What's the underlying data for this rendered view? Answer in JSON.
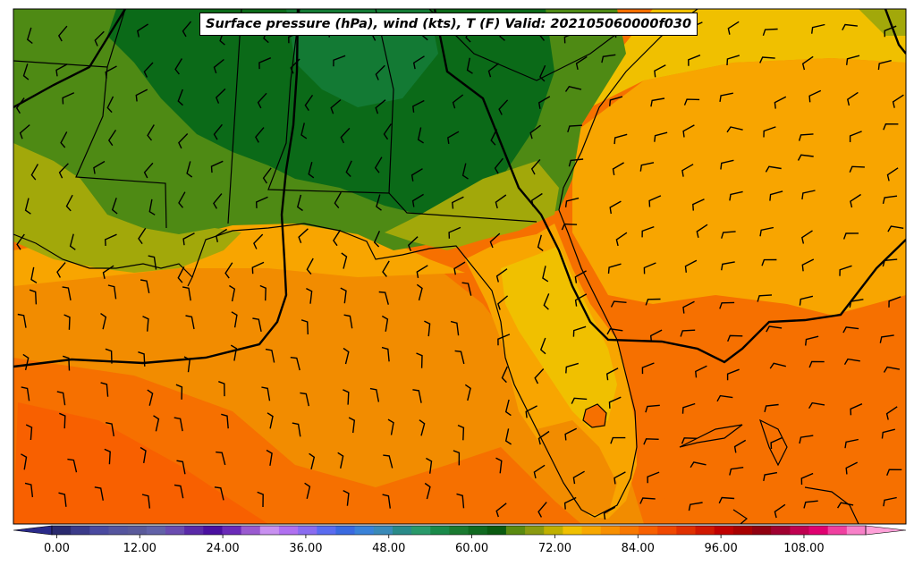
{
  "title": "Surface pressure (hPa), wind (kts), T (F) Valid: 202105060000f030",
  "colorbar": {
    "tick_labels": [
      "0.00",
      "12.00",
      "24.00",
      "36.00",
      "48.00",
      "60.00",
      "72.00",
      "84.00",
      "96.00",
      "108.00"
    ],
    "min": -6,
    "max": 123,
    "step": 3,
    "colors": [
      "#2a2a6e",
      "#3b3b8a",
      "#4a4aa0",
      "#55559e",
      "#5a5a9a",
      "#6262a8",
      "#6a4cb0",
      "#5a2aa8",
      "#4a10a0",
      "#6a2ab8",
      "#9a5ad0",
      "#c890f0",
      "#b070f0",
      "#8a6cf0",
      "#5a6cf0",
      "#3a6ae0",
      "#3a82d8",
      "#3a8ab8",
      "#2a8a88",
      "#2a9a6a",
      "#1a8a4a",
      "#1a7a30",
      "#106a20",
      "#0a5a10",
      "#5a8a10",
      "#8a9a10",
      "#c0b000",
      "#f0c000",
      "#f8a800",
      "#f89000",
      "#f87800",
      "#f86000",
      "#f04800",
      "#e03000",
      "#d01800",
      "#c00000",
      "#a80000",
      "#900010",
      "#a00030",
      "#c00050",
      "#e00070",
      "#f040a0",
      "#f880c8"
    ]
  },
  "colors": {
    "gulf_warm": "#f28c00",
    "gulf_hot": "#f67000",
    "atlantic_mid": "#f8a500",
    "inland_green": "#4e8a14",
    "dark_green": "#0b6a18",
    "olive": "#a2a80a",
    "yellow": "#f0c000",
    "isobar": "#000000",
    "boundary": "#000000"
  }
}
